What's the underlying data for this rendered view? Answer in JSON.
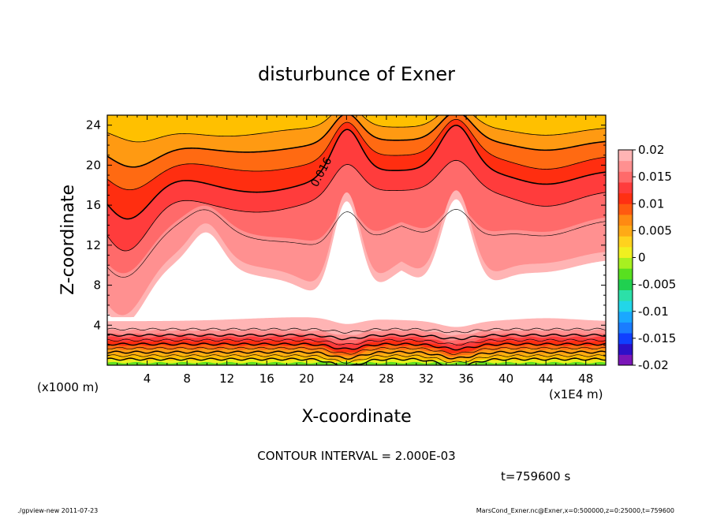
{
  "chart_data": {
    "type": "contour",
    "title": "disturbunce of Exner",
    "xlabel": "X-coordinate",
    "ylabel": "Z-coordinate",
    "x_unit_label": "(x1E4 m)",
    "y_unit_label": "(x1000 m)",
    "xlim": [
      0,
      50
    ],
    "ylim": [
      0,
      25
    ],
    "x_ticks": [
      4,
      8,
      12,
      16,
      20,
      24,
      28,
      32,
      36,
      40,
      44,
      48
    ],
    "y_ticks": [
      4,
      8,
      12,
      16,
      20,
      24
    ],
    "contour_interval_text": "CONTOUR INTERVAL = 2.000E-03",
    "contour_label": "0.016",
    "time_text": "t=759600 s",
    "colorbar": {
      "range": [
        -0.02,
        0.02
      ],
      "tick_labels": [
        "0.02",
        "0.015",
        "0.01",
        "0.005",
        "0",
        "-0.005",
        "-0.01",
        "-0.015",
        "-0.02"
      ],
      "tick_values": [
        0.02,
        0.015,
        0.01,
        0.005,
        0,
        -0.005,
        -0.01,
        -0.015,
        -0.02
      ],
      "colors": [
        "#7a16b8",
        "#2c10c8",
        "#1040ff",
        "#1a7cff",
        "#1aa8ff",
        "#22d6e8",
        "#2ce0a8",
        "#20d050",
        "#58e020",
        "#a8f020",
        "#f0f020",
        "#ffd21e",
        "#ffaa16",
        "#ff8a12",
        "#ff5a10",
        "#ff3012",
        "#ff3c3c",
        "#ff6a6a",
        "#ff9090",
        "#ffb4b4"
      ]
    },
    "valley_positions_x": [
      24,
      35
    ],
    "field_colors": {
      "c020": "#ffc000",
      "c018": "#ff9a12",
      "c016": "#ff6a12",
      "c014": "#ff2e10",
      "c012": "#ff3c3c",
      "c010": "#ff6a6a",
      "c008": "#ff9090",
      "c006": "#ffb4b4",
      "zero": "#ffffff",
      "b_yellow": "#e8f020",
      "b_green": "#60e020",
      "b_orange": "#ffb010"
    }
  },
  "footer": {
    "left": "./gpview-new   2011-07-23",
    "right": "MarsCond_Exner.nc@Exner,x=0:500000,z=0:25000,t=759600"
  }
}
